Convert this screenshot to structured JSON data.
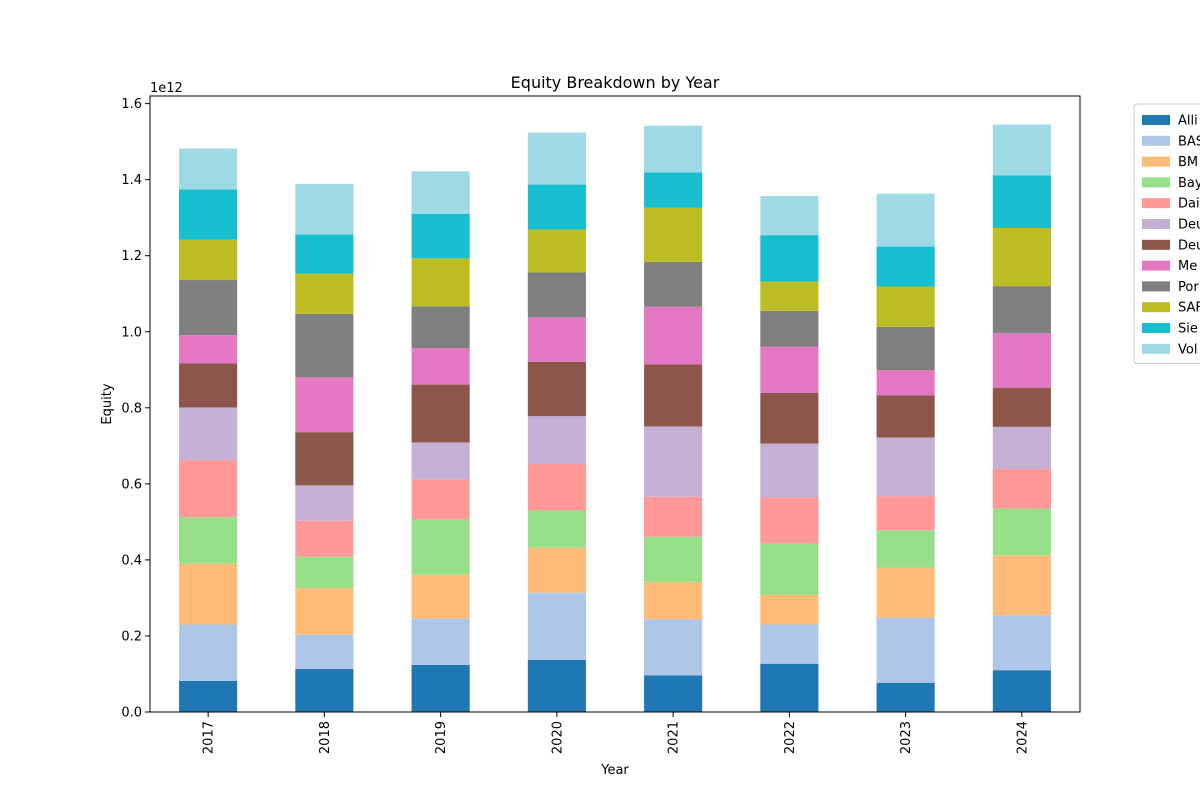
{
  "chart_data": {
    "type": "bar",
    "stacked": true,
    "title": "Equity Breakdown by Year",
    "xlabel": "Year",
    "ylabel": "Equity",
    "y_offset_label": "1e12",
    "y_scale_multiplier": 1000000000000.0,
    "ylim": [
      0,
      1.62
    ],
    "yticks": [
      0.0,
      0.2,
      0.4,
      0.6,
      0.8,
      1.0,
      1.2,
      1.4,
      1.6
    ],
    "ytick_labels": [
      "0.0",
      "0.2",
      "0.4",
      "0.6",
      "0.8",
      "1.0",
      "1.2",
      "1.4",
      "1.6"
    ],
    "grid": false,
    "legend_position": "right-outside-top",
    "categories": [
      "2017",
      "2018",
      "2019",
      "2020",
      "2021",
      "2022",
      "2023",
      "2024"
    ],
    "series": [
      {
        "name": "Alli",
        "color": "#1f77b4",
        "values": [
          0.082,
          0.113,
          0.124,
          0.137,
          0.096,
          0.127,
          0.077,
          0.11
        ]
      },
      {
        "name": "BAS",
        "color": "#aec7e8",
        "values": [
          0.148,
          0.09,
          0.122,
          0.177,
          0.148,
          0.103,
          0.171,
          0.145
        ]
      },
      {
        "name": "BM",
        "color": "#ffbb78",
        "values": [
          0.16,
          0.123,
          0.115,
          0.118,
          0.098,
          0.078,
          0.131,
          0.157
        ]
      },
      {
        "name": "Bay",
        "color": "#98df8a",
        "values": [
          0.122,
          0.082,
          0.145,
          0.098,
          0.119,
          0.135,
          0.099,
          0.123
        ]
      },
      {
        "name": "Dai",
        "color": "#ff9896",
        "values": [
          0.15,
          0.095,
          0.106,
          0.122,
          0.105,
          0.121,
          0.089,
          0.104
        ]
      },
      {
        "name": "Deu",
        "color": "#c5b0d5",
        "values": [
          0.139,
          0.093,
          0.097,
          0.126,
          0.185,
          0.142,
          0.155,
          0.111
        ]
      },
      {
        "name": "Deu",
        "color": "#8c564b",
        "values": [
          0.116,
          0.14,
          0.152,
          0.143,
          0.163,
          0.133,
          0.111,
          0.102
        ]
      },
      {
        "name": "Me",
        "color": "#e377c2",
        "values": [
          0.074,
          0.144,
          0.096,
          0.117,
          0.152,
          0.122,
          0.066,
          0.144
        ]
      },
      {
        "name": "Por",
        "color": "#7f7f7f",
        "values": [
          0.145,
          0.167,
          0.11,
          0.118,
          0.118,
          0.094,
          0.114,
          0.124
        ]
      },
      {
        "name": "SAF",
        "color": "#bcbd22",
        "values": [
          0.106,
          0.106,
          0.126,
          0.113,
          0.142,
          0.077,
          0.106,
          0.153
        ]
      },
      {
        "name": "Sie",
        "color": "#17becf",
        "values": [
          0.132,
          0.103,
          0.117,
          0.118,
          0.093,
          0.122,
          0.105,
          0.138
        ]
      },
      {
        "name": "Vol",
        "color": "#9edae5",
        "values": [
          0.108,
          0.133,
          0.112,
          0.137,
          0.123,
          0.103,
          0.139,
          0.134
        ]
      }
    ]
  }
}
